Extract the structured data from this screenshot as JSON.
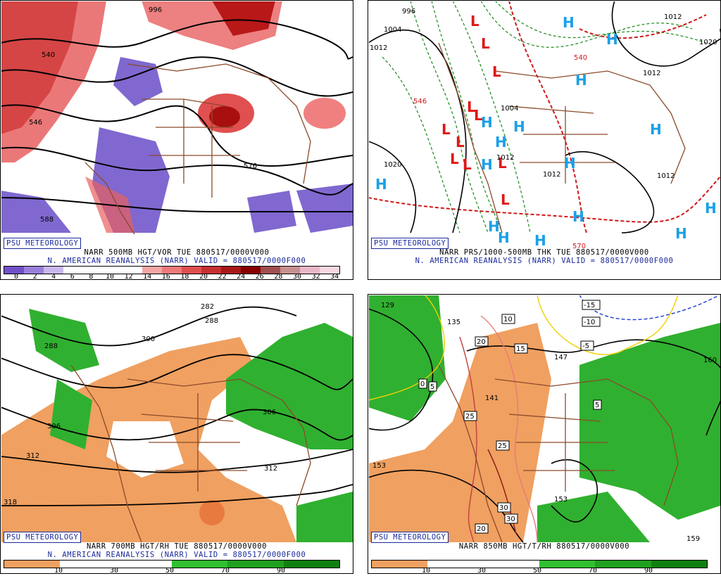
{
  "panels": [
    {
      "badge": "PSU METEOROLOGY",
      "line1": "NARR 500MB HGT/VOR TUE 880517/0000V000",
      "line2": "N. AMERICAN REANALYSIS (NARR) VALID = 880517/0000F000",
      "colorbar": {
        "colors": [
          "#7050c8",
          "#9a80dc",
          "#c8b8ee",
          "#ffffff",
          "#ffffff",
          "#ffffff",
          "#ffffff",
          "#f4a6a6",
          "#ee7a7a",
          "#e05050",
          "#c83030",
          "#a81818",
          "#880000",
          "#a05050",
          "#c89090",
          "#e8b8c8",
          "#f8d8e0"
        ],
        "ticks": [
          "0",
          "2",
          "4",
          "6",
          "8",
          "10",
          "12",
          "14",
          "16",
          "18",
          "20",
          "22",
          "24",
          "26",
          "28",
          "30",
          "32",
          "34"
        ]
      },
      "contour_labels": [
        "540",
        "546",
        "576",
        "588",
        "996"
      ]
    },
    {
      "badge": "PSU METEOROLOGY",
      "line1": "NARR PRS/1000-500MB THK TUE 880517/0000V000",
      "line2": "N. AMERICAN REANALYSIS (NARR) VALID = 880517/0000F000",
      "contour_labels": [
        "996",
        "1004",
        "1012",
        "1020",
        "1020",
        "1012",
        "1012",
        "1004",
        "1012",
        "1012",
        "1012",
        "540",
        "570",
        "546"
      ],
      "pressure_centers": [
        "L",
        "L",
        "L",
        "L",
        "L",
        "L",
        "L",
        "L",
        "L",
        "L",
        "L",
        "H",
        "H",
        "H",
        "H",
        "H",
        "H",
        "H",
        "H",
        "H",
        "H",
        "H",
        "H",
        "H",
        "H",
        "H",
        "H"
      ]
    },
    {
      "badge": "PSU METEOROLOGY",
      "line1": "NARR 700MB HGT/RH TUE 880517/0000V000",
      "line2": "N. AMERICAN REANALYSIS (NARR) VALID = 880517/0000F000",
      "colorbar": {
        "colors": [
          "#f0a060",
          "#ffffff",
          "#ffffff",
          "#30c030",
          "#20a020",
          "#108010"
        ],
        "ticks": [
          "10",
          "30",
          "50",
          "70",
          "90"
        ]
      },
      "contour_labels": [
        "282",
        "288",
        "300",
        "288",
        "306",
        "306",
        "312",
        "312",
        "318"
      ]
    },
    {
      "badge": "PSU METEOROLOGY",
      "line1": "NARR 850MB HGT/T/RH 880517/0000V000",
      "colorbar": {
        "colors": [
          "#f0a060",
          "#ffffff",
          "#ffffff",
          "#30c030",
          "#20a020",
          "#108010"
        ],
        "ticks": [
          "10",
          "30",
          "50",
          "70",
          "90"
        ]
      },
      "contour_labels": [
        "129",
        "135",
        "141",
        "147",
        "153",
        "153",
        "159",
        "160"
      ],
      "temperature_labels": [
        "-15",
        "-10",
        "-5",
        "0",
        "5",
        "5",
        "10",
        "15",
        "20",
        "20",
        "25",
        "25",
        "30",
        "30"
      ]
    }
  ]
}
